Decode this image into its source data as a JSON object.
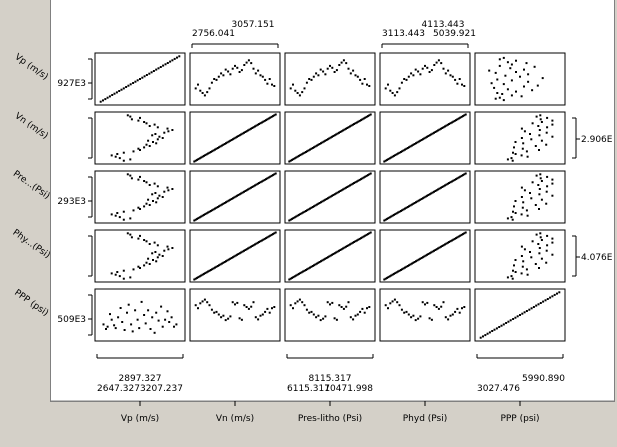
{
  "chart_data": {
    "type": "scatter",
    "variables": [
      {
        "short": "Vp (m/s)",
        "name": "Vp (m/s)",
        "range_ticks": [
          "2897.327",
          "2647.327",
          "3207.237"
        ]
      },
      {
        "short": "Vn (m/s)",
        "name": "Vn (m/s)",
        "range_ticks": [
          "3057.151",
          "2756.041"
        ]
      },
      {
        "short": "Pre...(Psi)",
        "name": "Pres-litho (Psi)",
        "range_ticks": [
          "8115.317",
          "6115.317",
          "10471.998"
        ]
      },
      {
        "short": "Phy...(Psi)",
        "name": "Phyd (Psi)",
        "range_ticks": [
          "4113.443",
          "3113.443",
          "5039.921"
        ]
      },
      {
        "short": "PPP (psi)",
        "name": "PPP (psi)",
        "range_ticks": [
          "5990.890",
          "3027.476"
        ]
      }
    ],
    "left_ticks": [
      "927E3",
      "",
      "293E3",
      "",
      "509E3"
    ],
    "right_ticks": [
      "",
      "2.906E",
      "",
      "4.076E",
      ""
    ],
    "top_ticks": {
      "col2": [
        "3057.151",
        "2756.041"
      ],
      "col4": [
        "4113.443",
        "3113.443",
        "5039.921"
      ]
    },
    "bottom_ticks": {
      "col1": [
        "2897.327",
        "2647.327",
        "3207.237"
      ],
      "col3": [
        "8115.317",
        "6115.317",
        "10471.998"
      ],
      "col5": [
        "5990.890",
        "3027.476"
      ]
    },
    "series": {
      "Vp": [
        0.05,
        0.08,
        0.1,
        0.13,
        0.15,
        0.18,
        0.2,
        0.23,
        0.26,
        0.28,
        0.31,
        0.34,
        0.36,
        0.39,
        0.41,
        0.44,
        0.47,
        0.49,
        0.52,
        0.55,
        0.57,
        0.6,
        0.63,
        0.65,
        0.68,
        0.7,
        0.73,
        0.76,
        0.78,
        0.81,
        0.84,
        0.86,
        0.89,
        0.92,
        0.95
      ],
      "Vn": [
        0.3,
        0.38,
        0.25,
        0.2,
        0.15,
        0.22,
        0.3,
        0.42,
        0.5,
        0.48,
        0.55,
        0.62,
        0.58,
        0.7,
        0.66,
        0.6,
        0.72,
        0.78,
        0.74,
        0.65,
        0.69,
        0.8,
        0.85,
        0.9,
        0.84,
        0.72,
        0.62,
        0.68,
        0.58,
        0.55,
        0.48,
        0.4,
        0.5,
        0.38,
        0.35
      ],
      "PPP": [
        0.3,
        0.2,
        0.25,
        0.52,
        0.4,
        0.28,
        0.22,
        0.45,
        0.65,
        0.35,
        0.18,
        0.55,
        0.72,
        0.3,
        0.15,
        0.6,
        0.4,
        0.22,
        0.78,
        0.5,
        0.32,
        0.6,
        0.2,
        0.45,
        0.12,
        0.55,
        0.38,
        0.68,
        0.25,
        0.4,
        0.58,
        0.35,
        0.45,
        0.25,
        0.3
      ]
    }
  }
}
